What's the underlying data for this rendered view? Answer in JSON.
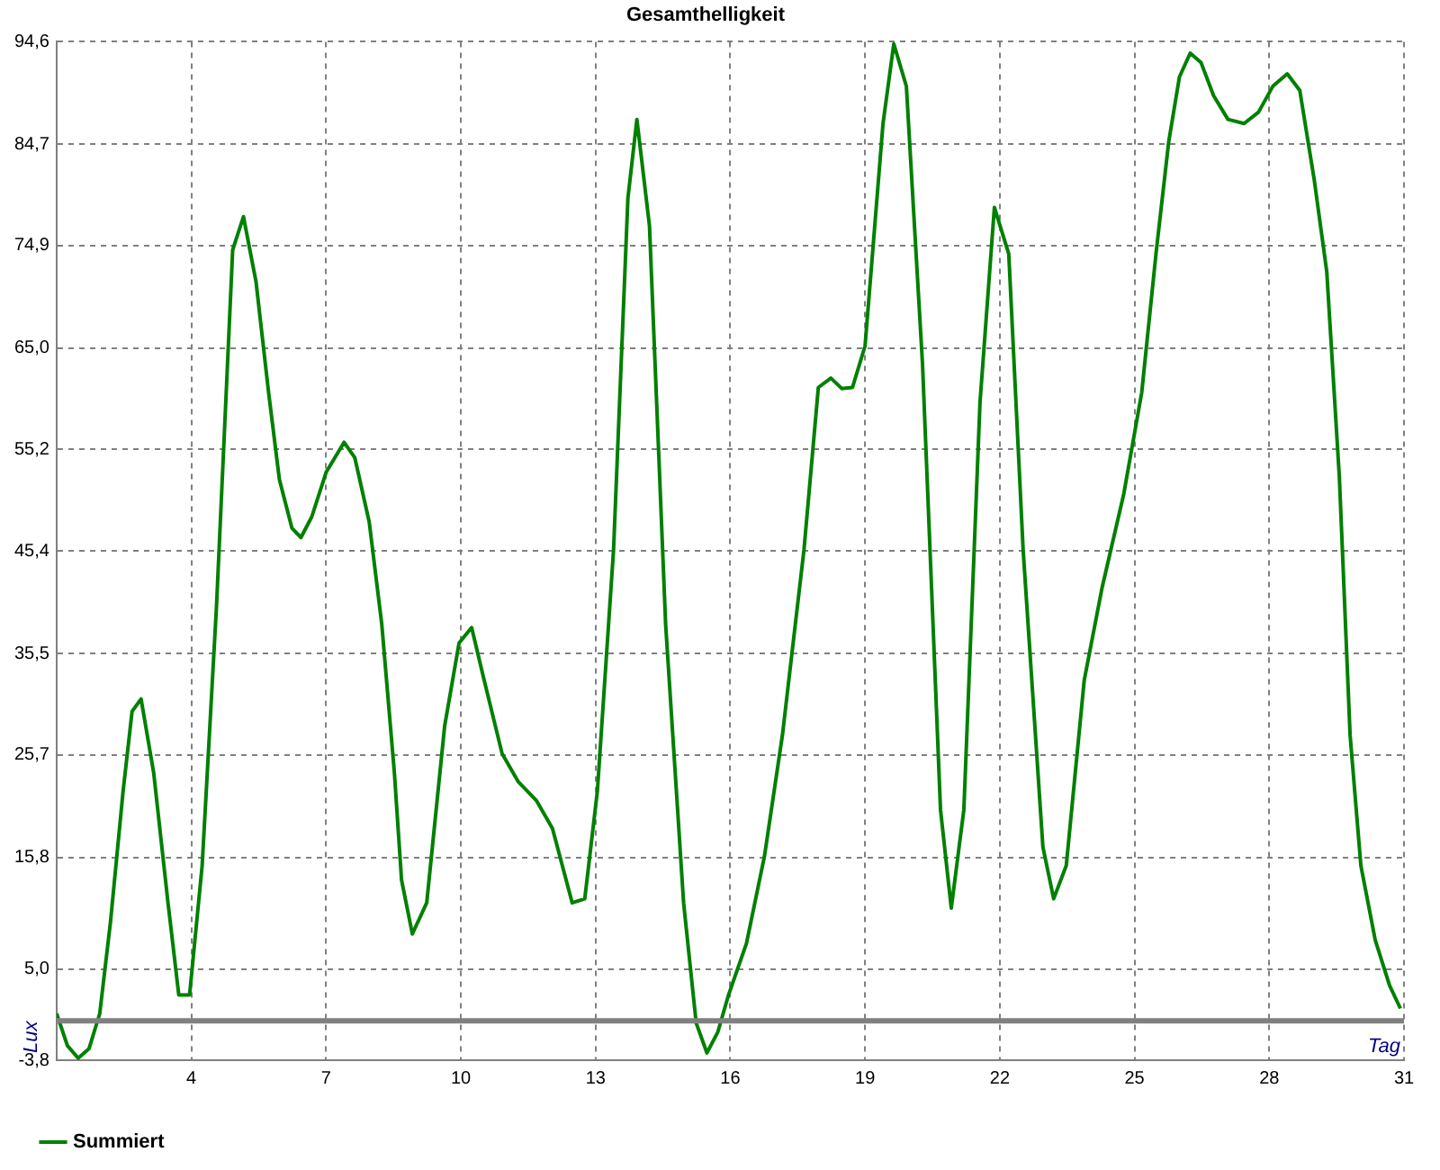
{
  "chart_data": {
    "type": "line",
    "title": "Gesamthelligkeit",
    "xlabel": "Tag",
    "ylabel": "Lux",
    "x": [
      1,
      1.24,
      1.48,
      1.72,
      1.96,
      2.2,
      2.48,
      2.68,
      2.88,
      3.16,
      3.48,
      3.72,
      3.96,
      4.24,
      4.56,
      4.92,
      5.16,
      5.44,
      5.72,
      5.96,
      6.24,
      6.44,
      6.68,
      7.0,
      7.4,
      7.64,
      7.96,
      8.24,
      8.52,
      8.68,
      8.92,
      9.24,
      9.64,
      9.96,
      10.24,
      10.52,
      10.92,
      11.28,
      11.68,
      12.04,
      12.48,
      12.76,
      13.04,
      13.4,
      13.72,
      13.92,
      14.2,
      14.56,
      14.96,
      15.24,
      15.48,
      15.72,
      15.96,
      16.36,
      16.76,
      17.16,
      17.64,
      17.96,
      18.24,
      18.48,
      18.72,
      19.0,
      19.4,
      19.64,
      19.92,
      20.28,
      20.68,
      20.92,
      21.2,
      21.56,
      21.88,
      22.2,
      22.52,
      22.96,
      23.2,
      23.48,
      23.88,
      24.28,
      24.76,
      25.16,
      25.48,
      25.76,
      26.0,
      26.24,
      26.48,
      26.76,
      27.08,
      27.44,
      27.76,
      28.08,
      28.4,
      28.68,
      29.0,
      29.28,
      29.56,
      29.8,
      30.04,
      30.36,
      30.68,
      30.92
    ],
    "series": [
      {
        "name": "Summiert",
        "color": "#008000",
        "values": [
          0.7,
          -2.4,
          -3.6,
          -2.7,
          0.7,
          9.6,
          22.2,
          29.9,
          31.1,
          24.0,
          11.4,
          2.5,
          2.5,
          15.0,
          40.1,
          74.5,
          77.7,
          71.4,
          60.7,
          52.3,
          47.6,
          46.7,
          48.7,
          53.0,
          55.9,
          54.4,
          48.2,
          38.3,
          24.0,
          13.6,
          8.4,
          11.4,
          28.5,
          36.5,
          38.0,
          32.9,
          25.8,
          23.1,
          21.3,
          18.6,
          11.4,
          11.8,
          22.2,
          45.5,
          79.5,
          87.1,
          76.8,
          38.3,
          11.4,
          -0.2,
          -3.1,
          -1.1,
          2.5,
          7.5,
          15.9,
          27.6,
          45.5,
          61.2,
          62.1,
          61.1,
          61.2,
          65.2,
          86.7,
          94.4,
          90.3,
          63.4,
          20.4,
          10.9,
          20.4,
          59.8,
          78.6,
          74.1,
          45.5,
          16.8,
          11.8,
          15.0,
          32.9,
          41.9,
          50.9,
          60.7,
          74.2,
          84.9,
          91.2,
          93.5,
          92.6,
          89.4,
          87.1,
          86.7,
          87.8,
          90.3,
          91.5,
          89.9,
          81.3,
          72.4,
          52.6,
          27.6,
          15.0,
          7.8,
          3.4,
          1.2
        ]
      }
    ],
    "xlim": [
      1,
      31
    ],
    "xticks": [
      {
        "value": 1,
        "label": null
      },
      4,
      7,
      10,
      13,
      16,
      19,
      22,
      25,
      28,
      31
    ],
    "ylim": [
      -3.8,
      94.6
    ],
    "yticks": [
      {
        "value": -3.8,
        "label": "-3,8"
      },
      {
        "value": 5.0,
        "label": "5,0"
      },
      {
        "value": 15.8,
        "label": "15,8"
      },
      {
        "value": 25.7,
        "label": "25,7"
      },
      {
        "value": 35.5,
        "label": "35,5"
      },
      {
        "value": 45.4,
        "label": "45,4"
      },
      {
        "value": 55.2,
        "label": "55,2"
      },
      {
        "value": 65.0,
        "label": "65,0"
      },
      {
        "value": 74.9,
        "label": "74,9"
      },
      {
        "value": 84.7,
        "label": "84,7"
      },
      {
        "value": 94.6,
        "label": "94,6"
      }
    ],
    "ref_lines": [
      {
        "axis": "y",
        "value": 0,
        "color": "#808080"
      }
    ],
    "grid": true,
    "legend": "bottom left",
    "marker": "none",
    "line_style": "solid"
  }
}
